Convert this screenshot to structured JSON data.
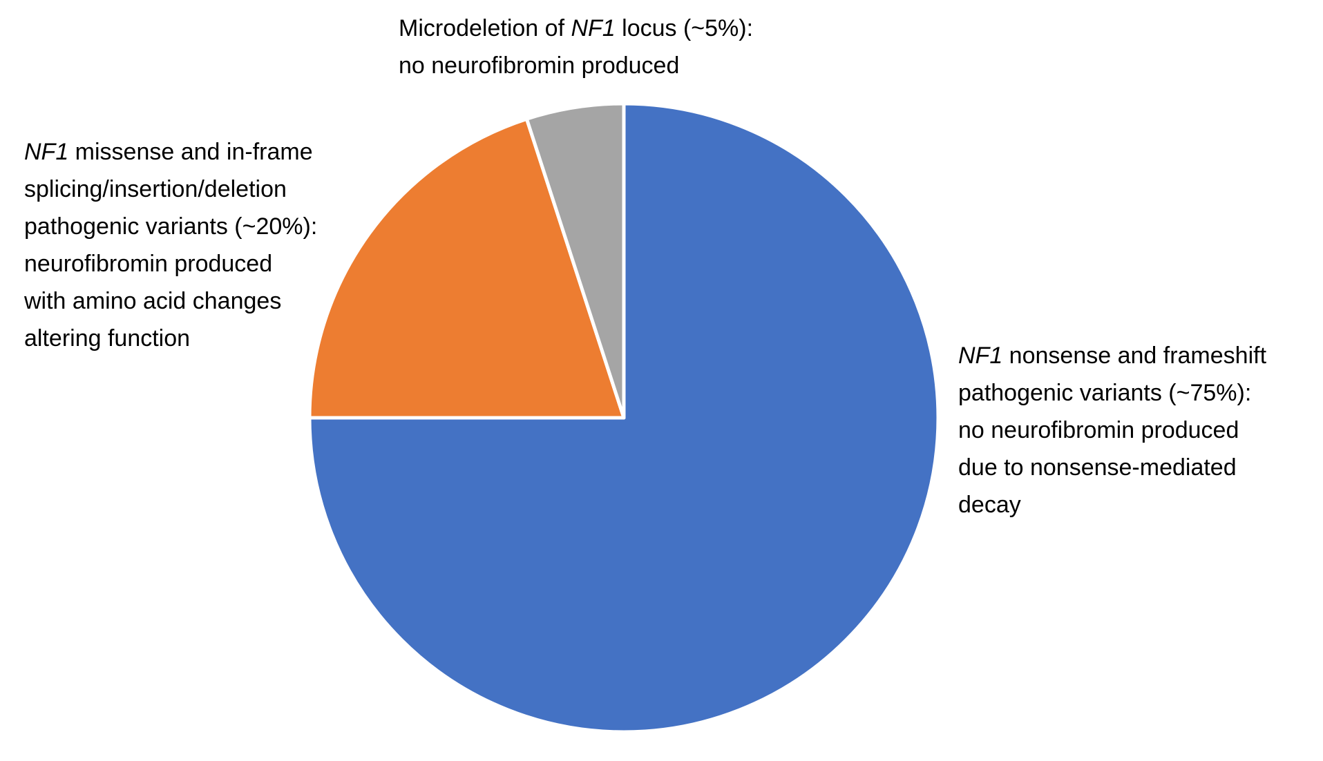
{
  "chart_data": {
    "type": "pie",
    "values": [
      75,
      20,
      5
    ],
    "colors": [
      "#4472c4",
      "#ed7d31",
      "#a5a5a5"
    ],
    "labels": [
      [
        [
          {
            "text": "NF1",
            "italic": true
          },
          {
            "text": " nonsense and frameshift"
          }
        ],
        [
          {
            "text": "pathogenic variants (~75%):"
          }
        ],
        [
          {
            "text": "no neurofibromin produced"
          }
        ],
        [
          {
            "text": "due to nonsense-mediated"
          }
        ],
        [
          {
            "text": "decay"
          }
        ]
      ],
      [
        [
          {
            "text": "NF1",
            "italic": true
          },
          {
            "text": " missense and in-frame"
          }
        ],
        [
          {
            "text": "splicing/insertion/deletion"
          }
        ],
        [
          {
            "text": "pathogenic variants (~20%):"
          }
        ],
        [
          {
            "text": "neurofibromin produced"
          }
        ],
        [
          {
            "text": "with amino acid changes"
          }
        ],
        [
          {
            "text": "altering function"
          }
        ]
      ],
      [
        [
          {
            "text": "Microdeletion of "
          },
          {
            "text": "NF1",
            "italic": true
          },
          {
            "text": " locus (~5%):"
          }
        ],
        [
          {
            "text": "no neurofibromin produced"
          }
        ]
      ]
    ]
  }
}
